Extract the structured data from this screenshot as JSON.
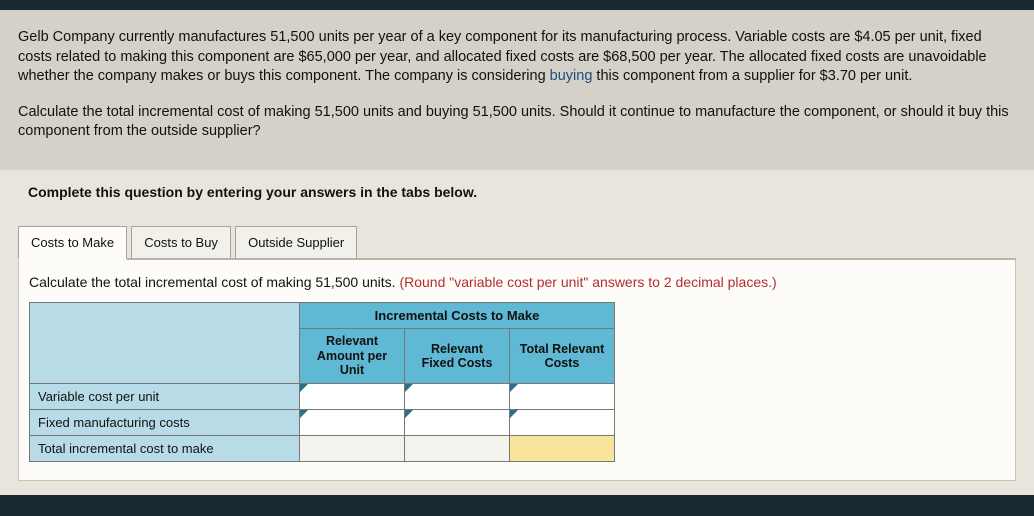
{
  "problem": {
    "p1_a": "Gelb Company currently manufactures 51,500 units per year of a key component for its manufacturing process. Variable costs are $4.05 per unit, fixed costs related to making this component are $65,000 per year, and allocated fixed costs are $68,500 per year. The allocated fixed costs are unavoidable whether the company makes or buys this component. The company is considering ",
    "p1_buy": "buying",
    "p1_b": " this component from a supplier for $3.70 per unit.",
    "p2": "Calculate the total incremental cost of making 51,500 units and buying 51,500 units. Should it continue to manufacture the component, or should it buy this component from the outside supplier?"
  },
  "instruction": "Complete this question by entering your answers in the tabs below.",
  "tabs": {
    "make": "Costs to Make",
    "buy": "Costs to Buy",
    "supplier": "Outside Supplier"
  },
  "sub_instruction": "Calculate the total incremental cost of making 51,500 units. ",
  "hint": "(Round \"variable cost per unit\" answers to 2 decimal places.)",
  "table": {
    "title": "Incremental Costs to Make",
    "col1": "Relevant Amount per Unit",
    "col2": "Relevant Fixed Costs",
    "col3": "Total Relevant Costs",
    "row1": "Variable cost per unit",
    "row2": "Fixed manufacturing costs",
    "row3": "Total incremental cost to make"
  }
}
